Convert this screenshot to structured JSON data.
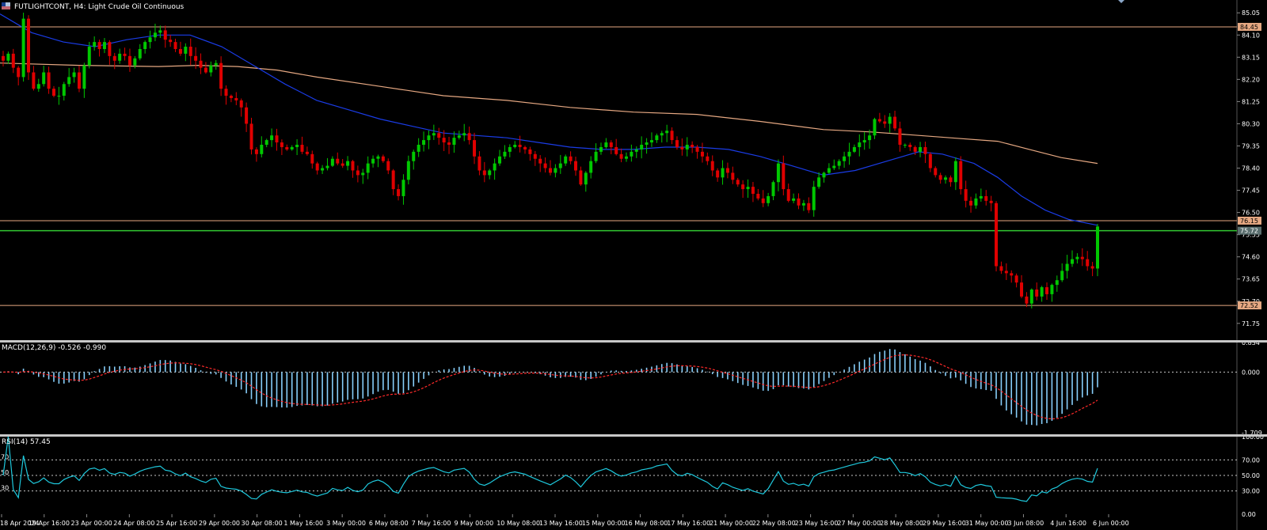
{
  "header": {
    "symbol": "FUTLIGHTCONT",
    "timeframe": "H4",
    "description": "Light Crude Oil Continuous",
    "title": "FUTLIGHTCONT, H4: Light Crude Oil Continuous"
  },
  "colors": {
    "background": "#000000",
    "bull": "#00c800",
    "bear": "#e00000",
    "ma_fast": "#1a3ce6",
    "ma_slow": "#e6a882",
    "level_line": "#e6a882",
    "current_price_line": "#32c832",
    "macd_hist": "#87cefa",
    "macd_signal": "#ff2a2a",
    "rsi": "#1ec8dc",
    "axis_text": "#ffffff",
    "separator": "#c8c8c8"
  },
  "chart_data": [
    {
      "type": "candlestick",
      "panel": "price",
      "ylim": [
        71.1,
        85.6
      ],
      "y_ticks": [
        "85.05",
        "84.10",
        "83.15",
        "82.20",
        "81.25",
        "80.30",
        "79.35",
        "78.40",
        "77.45",
        "76.50",
        "75.55",
        "74.60",
        "73.65",
        "72.70",
        "71.75"
      ],
      "y_tick_values": [
        85.05,
        84.1,
        83.15,
        82.2,
        81.25,
        80.3,
        79.35,
        78.4,
        77.45,
        76.5,
        75.55,
        74.6,
        73.65,
        72.7,
        71.75
      ],
      "x_ticks": [
        "18 Apr 2024",
        "19 Apr 16:00",
        "23 Apr 00:00",
        "24 Apr 08:00",
        "25 Apr 16:00",
        "29 Apr 00:00",
        "30 Apr 08:00",
        "1 May 16:00",
        "3 May 00:00",
        "6 May 08:00",
        "7 May 16:00",
        "9 May 00:00",
        "10 May 08:00",
        "13 May 16:00",
        "15 May 00:00",
        "16 May 08:00",
        "17 May 16:00",
        "21 May 00:00",
        "22 May 08:00",
        "23 May 16:00",
        "27 May 00:00",
        "28 May 08:00",
        "29 May 16:00",
        "31 May 00:00",
        "3 Jun 08:00",
        "4 Jun 16:00",
        "6 Jun 00:00"
      ],
      "close_path": [
        83.0,
        83.3,
        82.7,
        82.3,
        84.8,
        82.5,
        81.8,
        82.0,
        82.5,
        81.8,
        81.5,
        81.5,
        82.0,
        82.3,
        82.5,
        81.8,
        82.8,
        83.6,
        83.8,
        83.5,
        83.8,
        83.2,
        83.0,
        83.3,
        83.2,
        82.8,
        83.1,
        83.5,
        83.8,
        84.0,
        84.2,
        84.3,
        83.9,
        83.8,
        83.5,
        83.3,
        83.6,
        83.2,
        83.0,
        82.7,
        82.5,
        82.8,
        82.9,
        81.8,
        81.5,
        81.4,
        81.3,
        81.0,
        80.3,
        79.2,
        79.0,
        79.4,
        79.6,
        79.8,
        79.5,
        79.3,
        79.2,
        79.3,
        79.4,
        79.1,
        79.0,
        78.6,
        78.3,
        78.4,
        78.5,
        78.8,
        78.6,
        78.5,
        78.7,
        78.3,
        78.1,
        78.2,
        78.6,
        78.8,
        78.9,
        78.7,
        78.3,
        77.5,
        77.2,
        77.9,
        78.7,
        79.1,
        79.4,
        79.6,
        79.8,
        79.9,
        79.7,
        79.5,
        79.4,
        79.7,
        79.8,
        79.9,
        79.6,
        78.9,
        78.3,
        78.1,
        78.3,
        78.6,
        78.9,
        79.1,
        79.3,
        79.4,
        79.3,
        79.2,
        79.0,
        78.8,
        78.6,
        78.4,
        78.2,
        78.4,
        78.6,
        78.9,
        78.7,
        78.3,
        77.7,
        78.2,
        78.7,
        79.1,
        79.3,
        79.5,
        79.3,
        79.0,
        78.8,
        78.9,
        79.1,
        79.2,
        79.4,
        79.5,
        79.6,
        79.8,
        79.9,
        80.0,
        79.6,
        79.3,
        79.2,
        79.4,
        79.3,
        79.1,
        78.9,
        78.7,
        78.3,
        78.0,
        78.4,
        78.2,
        77.9,
        77.7,
        77.5,
        77.6,
        77.3,
        77.1,
        76.9,
        77.2,
        77.8,
        78.6,
        77.5,
        77.0,
        77.1,
        76.8,
        76.9,
        76.6,
        77.6,
        78.0,
        78.2,
        78.4,
        78.5,
        78.7,
        78.9,
        79.1,
        79.3,
        79.5,
        79.6,
        79.8,
        80.5,
        80.4,
        80.3,
        80.6,
        80.1,
        79.4,
        79.4,
        79.3,
        79.1,
        79.3,
        79.0,
        78.4,
        78.1,
        77.9,
        78.0,
        77.8,
        78.7,
        77.5,
        77.0,
        76.8,
        77.1,
        77.2,
        77.0,
        76.9,
        74.2,
        74.0,
        73.9,
        73.8,
        73.5,
        72.9,
        72.6,
        73.2,
        72.9,
        73.3,
        73.0,
        73.4,
        73.6,
        74.0,
        74.3,
        74.5,
        74.6,
        74.5,
        74.2,
        74.1,
        75.9
      ],
      "levels": [
        {
          "label": "84.45",
          "value": 84.45
        },
        {
          "label": "76.15",
          "value": 76.15
        },
        {
          "label": "72.52",
          "value": 72.52
        }
      ],
      "current_price": {
        "label": "75.72",
        "value": 75.72
      },
      "ma_fast": [
        [
          0,
          85.0
        ],
        [
          40,
          84.2
        ],
        [
          80,
          83.8
        ],
        [
          120,
          83.6
        ],
        [
          160,
          83.9
        ],
        [
          200,
          84.1
        ],
        [
          240,
          84.1
        ],
        [
          280,
          83.6
        ],
        [
          320,
          82.8
        ],
        [
          360,
          82.0
        ],
        [
          400,
          81.3
        ],
        [
          440,
          80.9
        ],
        [
          480,
          80.5
        ],
        [
          520,
          80.2
        ],
        [
          560,
          79.9
        ],
        [
          600,
          79.8
        ],
        [
          640,
          79.7
        ],
        [
          680,
          79.5
        ],
        [
          720,
          79.3
        ],
        [
          760,
          79.2
        ],
        [
          800,
          79.2
        ],
        [
          840,
          79.3
        ],
        [
          880,
          79.3
        ],
        [
          920,
          79.2
        ],
        [
          960,
          78.9
        ],
        [
          1000,
          78.5
        ],
        [
          1040,
          78.1
        ],
        [
          1080,
          78.3
        ],
        [
          1120,
          78.7
        ],
        [
          1160,
          79.1
        ],
        [
          1190,
          79.0
        ],
        [
          1230,
          78.6
        ],
        [
          1260,
          78.0
        ],
        [
          1290,
          77.2
        ],
        [
          1320,
          76.6
        ],
        [
          1350,
          76.2
        ],
        [
          1386,
          75.95
        ]
      ],
      "ma_slow": [
        [
          0,
          82.9
        ],
        [
          100,
          82.8
        ],
        [
          200,
          82.75
        ],
        [
          250,
          82.8
        ],
        [
          300,
          82.75
        ],
        [
          350,
          82.6
        ],
        [
          400,
          82.3
        ],
        [
          480,
          81.9
        ],
        [
          560,
          81.5
        ],
        [
          640,
          81.3
        ],
        [
          720,
          81.0
        ],
        [
          800,
          80.8
        ],
        [
          880,
          80.7
        ],
        [
          960,
          80.4
        ],
        [
          1040,
          80.05
        ],
        [
          1100,
          79.95
        ],
        [
          1160,
          79.8
        ],
        [
          1200,
          79.7
        ],
        [
          1260,
          79.55
        ],
        [
          1300,
          79.2
        ],
        [
          1340,
          78.85
        ],
        [
          1386,
          78.6
        ]
      ]
    },
    {
      "type": "histogram_with_signal",
      "panel": "macd",
      "title": "MACD(12,26,9) -0.526 -0.990",
      "ylim": [
        -1.709,
        0.834
      ],
      "y_ticks": [
        "0.834",
        "0.000",
        "-1.709"
      ],
      "y_tick_values": [
        0.834,
        0.0,
        -1.709
      ]
    },
    {
      "type": "line",
      "panel": "rsi",
      "title": "RSI(14) 57.45",
      "ylim": [
        0,
        100
      ],
      "y_ticks": [
        "100.00",
        "70.00",
        "50.00",
        "30.00",
        "0.00"
      ],
      "y_tick_values": [
        100,
        70,
        50,
        30,
        0
      ],
      "levels_left": [
        "70",
        "50",
        "30"
      ]
    }
  ],
  "macd_title": "MACD(12,26,9) -0.526 -0.990",
  "rsi_title": "RSI(14) 57.45"
}
